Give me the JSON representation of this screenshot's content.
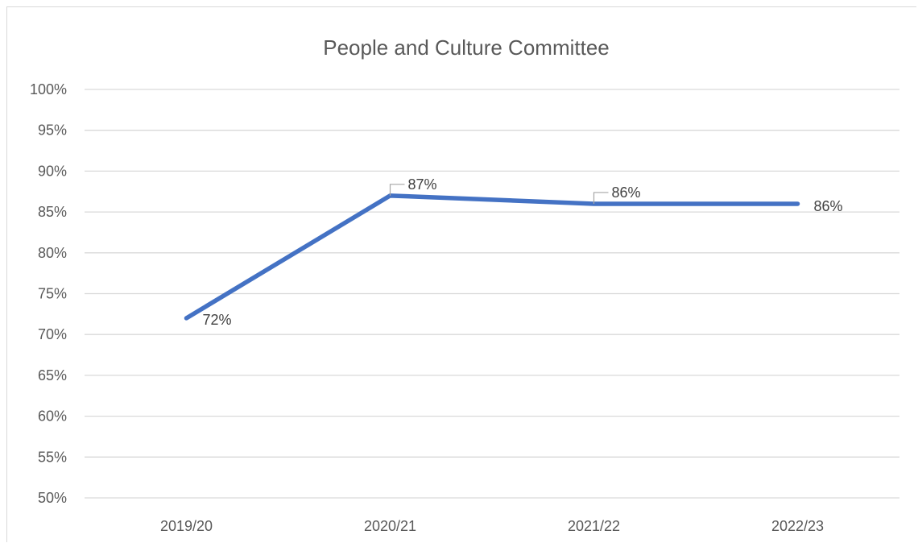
{
  "chart_data": {
    "type": "line",
    "title": "People and Culture Committee",
    "xlabel": "",
    "ylabel": "",
    "categories": [
      "2019/20",
      "2020/21",
      "2021/22",
      "2022/23"
    ],
    "series": [
      {
        "values": [
          72,
          87,
          86,
          86
        ],
        "data_labels": [
          "72%",
          "87%",
          "86%",
          "86%"
        ],
        "color": "#4472c4"
      }
    ],
    "ylim": [
      50,
      100
    ],
    "y_ticks": [
      50,
      55,
      60,
      65,
      70,
      75,
      80,
      85,
      90,
      95,
      100
    ],
    "y_tick_labels": [
      "50%",
      "55%",
      "60%",
      "65%",
      "70%",
      "75%",
      "80%",
      "85%",
      "90%",
      "95%",
      "100%"
    ],
    "grid": true,
    "legend": "none",
    "colors": {
      "gridline": "#d9d9d9",
      "text": "#595959",
      "series": "#4472c4"
    }
  }
}
